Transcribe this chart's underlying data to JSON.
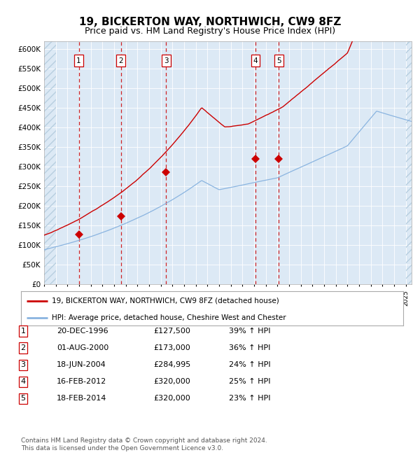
{
  "title": "19, BICKERTON WAY, NORTHWICH, CW9 8FZ",
  "subtitle": "Price paid vs. HM Land Registry's House Price Index (HPI)",
  "title_fontsize": 11,
  "subtitle_fontsize": 9,
  "plot_bg_color": "#dce9f5",
  "outer_bg_color": "#ffffff",
  "hpi_line_color": "#8ab4e0",
  "price_line_color": "#cc0000",
  "marker_color": "#cc0000",
  "dashed_line_color": "#cc0000",
  "ylim": [
    0,
    620000
  ],
  "yticks": [
    0,
    50000,
    100000,
    150000,
    200000,
    250000,
    300000,
    350000,
    400000,
    450000,
    500000,
    550000,
    600000
  ],
  "ytick_labels": [
    "£0",
    "£50K",
    "£100K",
    "£150K",
    "£200K",
    "£250K",
    "£300K",
    "£350K",
    "£400K",
    "£450K",
    "£500K",
    "£550K",
    "£600K"
  ],
  "xlim_start": 1994.0,
  "xlim_end": 2025.5,
  "sale_dates": [
    1996.97,
    2000.58,
    2004.46,
    2012.12,
    2014.12
  ],
  "sale_prices": [
    127500,
    173000,
    284995,
    320000,
    320000
  ],
  "sale_labels": [
    "1",
    "2",
    "3",
    "4",
    "5"
  ],
  "legend_line1": "19, BICKERTON WAY, NORTHWICH, CW9 8FZ (detached house)",
  "legend_line2": "HPI: Average price, detached house, Cheshire West and Chester",
  "table_data": [
    [
      "1",
      "20-DEC-1996",
      "£127,500",
      "39% ↑ HPI"
    ],
    [
      "2",
      "01-AUG-2000",
      "£173,000",
      "36% ↑ HPI"
    ],
    [
      "3",
      "18-JUN-2004",
      "£284,995",
      "24% ↑ HPI"
    ],
    [
      "4",
      "16-FEB-2012",
      "£320,000",
      "25% ↑ HPI"
    ],
    [
      "5",
      "18-FEB-2014",
      "£320,000",
      "23% ↑ HPI"
    ]
  ],
  "footnote": "Contains HM Land Registry data © Crown copyright and database right 2024.\nThis data is licensed under the Open Government Licence v3.0."
}
